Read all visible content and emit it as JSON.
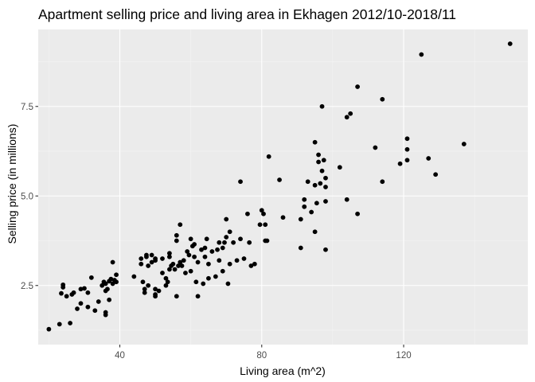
{
  "colors": {
    "panel_background": "#EBEBEB",
    "grid_major": "#FFFFFF",
    "grid_minor": "#F5F5F5",
    "point": "#000000",
    "tick": "#333333",
    "tick_label": "#4D4D4D"
  },
  "chart_data": {
    "type": "scatter",
    "title": "Apartment selling price and living area in Ekhagen 2012/10-2018/11",
    "xlabel": "Living area (m^2)",
    "ylabel": "Selling price (in millions)",
    "xlim": [
      17,
      155
    ],
    "ylim": [
      0.85,
      9.65
    ],
    "x_ticks": [
      40,
      80,
      120
    ],
    "x_tick_labels": [
      "40",
      "80",
      "120"
    ],
    "y_ticks": [
      2.5,
      5.0,
      7.5
    ],
    "y_tick_labels": [
      "2.5",
      "5.0",
      "7.5"
    ],
    "grid": true,
    "legend": "none",
    "points": [
      [
        20.0,
        1.28
      ],
      [
        23.0,
        1.42
      ],
      [
        23.5,
        2.28
      ],
      [
        24.0,
        2.45
      ],
      [
        24.0,
        2.52
      ],
      [
        25.0,
        2.2
      ],
      [
        26.0,
        1.45
      ],
      [
        26.5,
        2.25
      ],
      [
        27.0,
        2.3
      ],
      [
        28.0,
        1.85
      ],
      [
        29.0,
        2.4
      ],
      [
        29.0,
        2.0
      ],
      [
        30.0,
        2.42
      ],
      [
        31.0,
        2.3
      ],
      [
        31.0,
        1.9
      ],
      [
        32.0,
        2.72
      ],
      [
        33.0,
        1.8
      ],
      [
        34.0,
        2.05
      ],
      [
        35.0,
        2.5
      ],
      [
        35.5,
        2.6
      ],
      [
        36.0,
        1.75
      ],
      [
        36.0,
        1.68
      ],
      [
        36.0,
        2.35
      ],
      [
        36.0,
        2.55
      ],
      [
        36.5,
        2.4
      ],
      [
        37.0,
        2.1
      ],
      [
        37.0,
        2.62
      ],
      [
        37.5,
        2.68
      ],
      [
        38.0,
        2.55
      ],
      [
        38.0,
        3.15
      ],
      [
        38.5,
        2.65
      ],
      [
        39.0,
        2.6
      ],
      [
        39.0,
        2.8
      ],
      [
        44.0,
        2.75
      ],
      [
        46.0,
        3.1
      ],
      [
        46.0,
        3.25
      ],
      [
        46.5,
        2.6
      ],
      [
        47.0,
        2.4
      ],
      [
        47.0,
        2.3
      ],
      [
        47.5,
        3.3
      ],
      [
        47.5,
        3.35
      ],
      [
        48.0,
        3.05
      ],
      [
        48.0,
        2.5
      ],
      [
        49.0,
        3.35
      ],
      [
        49.0,
        3.15
      ],
      [
        50.0,
        3.2
      ],
      [
        50.0,
        3.25
      ],
      [
        50.0,
        2.4
      ],
      [
        50.0,
        2.25
      ],
      [
        50.0,
        2.2
      ],
      [
        51.0,
        2.35
      ],
      [
        52.0,
        2.85
      ],
      [
        52.0,
        3.25
      ],
      [
        53.0,
        2.5
      ],
      [
        53.0,
        2.7
      ],
      [
        53.5,
        2.6
      ],
      [
        54.0,
        3.3
      ],
      [
        54.0,
        2.95
      ],
      [
        54.0,
        3.4
      ],
      [
        54.5,
        3.05
      ],
      [
        55.0,
        3.1
      ],
      [
        55.5,
        2.95
      ],
      [
        56.0,
        2.2
      ],
      [
        56.0,
        3.75
      ],
      [
        56.0,
        3.9
      ],
      [
        56.5,
        3.05
      ],
      [
        57.0,
        4.2
      ],
      [
        57.0,
        3.15
      ],
      [
        57.5,
        3.05
      ],
      [
        58.0,
        3.2
      ],
      [
        58.5,
        2.85
      ],
      [
        59.0,
        3.45
      ],
      [
        59.5,
        3.35
      ],
      [
        60.0,
        3.8
      ],
      [
        60.0,
        2.9
      ],
      [
        60.5,
        3.6
      ],
      [
        61.0,
        3.3
      ],
      [
        61.0,
        3.65
      ],
      [
        61.5,
        2.6
      ],
      [
        62.0,
        2.2
      ],
      [
        62.0,
        3.15
      ],
      [
        63.0,
        3.5
      ],
      [
        63.5,
        2.55
      ],
      [
        64.0,
        3.3
      ],
      [
        64.0,
        3.55
      ],
      [
        64.5,
        3.8
      ],
      [
        65.0,
        3.1
      ],
      [
        65.0,
        2.7
      ],
      [
        66.0,
        3.45
      ],
      [
        67.0,
        2.75
      ],
      [
        67.5,
        3.5
      ],
      [
        68.0,
        3.2
      ],
      [
        68.0,
        3.7
      ],
      [
        69.0,
        2.9
      ],
      [
        69.0,
        3.55
      ],
      [
        69.5,
        3.7
      ],
      [
        70.0,
        4.35
      ],
      [
        70.0,
        3.85
      ],
      [
        70.5,
        2.55
      ],
      [
        71.0,
        3.1
      ],
      [
        71.0,
        4.0
      ],
      [
        72.0,
        3.7
      ],
      [
        73.0,
        3.2
      ],
      [
        74.0,
        3.8
      ],
      [
        74.0,
        5.4
      ],
      [
        75.0,
        3.25
      ],
      [
        76.0,
        4.5
      ],
      [
        76.5,
        3.7
      ],
      [
        77.0,
        3.05
      ],
      [
        78.0,
        3.1
      ],
      [
        79.5,
        4.2
      ],
      [
        80.0,
        4.6
      ],
      [
        80.5,
        4.5
      ],
      [
        81.0,
        4.2
      ],
      [
        81.0,
        3.75
      ],
      [
        81.5,
        3.75
      ],
      [
        82.0,
        6.1
      ],
      [
        85.0,
        5.45
      ],
      [
        86.0,
        4.4
      ],
      [
        91.0,
        4.35
      ],
      [
        91.0,
        3.55
      ],
      [
        92.0,
        4.9
      ],
      [
        92.0,
        4.7
      ],
      [
        93.0,
        5.4
      ],
      [
        94.0,
        4.55
      ],
      [
        95.0,
        6.5
      ],
      [
        95.0,
        5.3
      ],
      [
        95.0,
        4.0
      ],
      [
        95.5,
        4.8
      ],
      [
        96.0,
        5.95
      ],
      [
        96.0,
        6.15
      ],
      [
        96.5,
        5.35
      ],
      [
        97.0,
        7.5
      ],
      [
        97.0,
        5.7
      ],
      [
        97.5,
        6.0
      ],
      [
        98.0,
        5.5
      ],
      [
        98.0,
        5.25
      ],
      [
        98.0,
        3.5
      ],
      [
        98.0,
        4.85
      ],
      [
        102.0,
        5.8
      ],
      [
        104.0,
        4.9
      ],
      [
        104.0,
        7.2
      ],
      [
        105.0,
        7.3
      ],
      [
        107.0,
        8.05
      ],
      [
        107.0,
        4.5
      ],
      [
        112.0,
        6.35
      ],
      [
        114.0,
        7.7
      ],
      [
        114.0,
        5.4
      ],
      [
        119.0,
        5.9
      ],
      [
        121.0,
        6.6
      ],
      [
        121.0,
        6.3
      ],
      [
        121.0,
        6.0
      ],
      [
        127.0,
        6.05
      ],
      [
        129.0,
        5.6
      ],
      [
        137.0,
        6.45
      ],
      [
        150.0,
        9.25
      ],
      [
        125.0,
        8.95
      ]
    ]
  }
}
